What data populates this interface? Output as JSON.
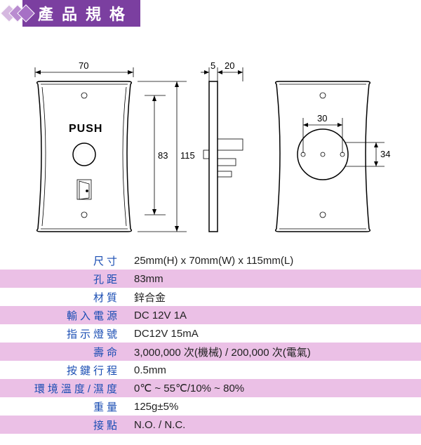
{
  "header": {
    "title": "產品規格"
  },
  "diagram": {
    "front": {
      "width_label": "70",
      "push_text": "PUSH",
      "height_inner_label": "83",
      "height_outer_label": "115"
    },
    "side": {
      "depth_label": "5",
      "back_label": "20"
    },
    "rear": {
      "circle_label": "30",
      "hole_pitch_label": "34"
    }
  },
  "specs": [
    {
      "label": "尺寸",
      "value": "25mm(H) x 70mm(W) x 115mm(L)",
      "stripe": false
    },
    {
      "label": "孔距",
      "value": "83mm",
      "stripe": true
    },
    {
      "label": "材質",
      "value": "鋅合金",
      "stripe": false
    },
    {
      "label": "輸入電源",
      "value": "DC 12V 1A",
      "stripe": true
    },
    {
      "label": "指示燈號",
      "value": "DC12V 15mA",
      "stripe": false
    },
    {
      "label": "壽命",
      "value": "3,000,000 次(機械)  /  200,000 次(電氣)",
      "stripe": true
    },
    {
      "label": "按鍵行程",
      "value": "0.5mm",
      "stripe": false
    },
    {
      "label": "環境溫度/濕度",
      "value": "0℃ ~ 55℃/10% ~ 80%",
      "stripe": true
    },
    {
      "label": "重量",
      "value": "125g±5%",
      "stripe": false
    },
    {
      "label": "接點",
      "value": "N.O. / N.C.",
      "stripe": true
    }
  ],
  "colors": {
    "stripe": "#ebc0e6",
    "label_text": "#1a4db3",
    "header_bg": "#7b3fa0"
  }
}
